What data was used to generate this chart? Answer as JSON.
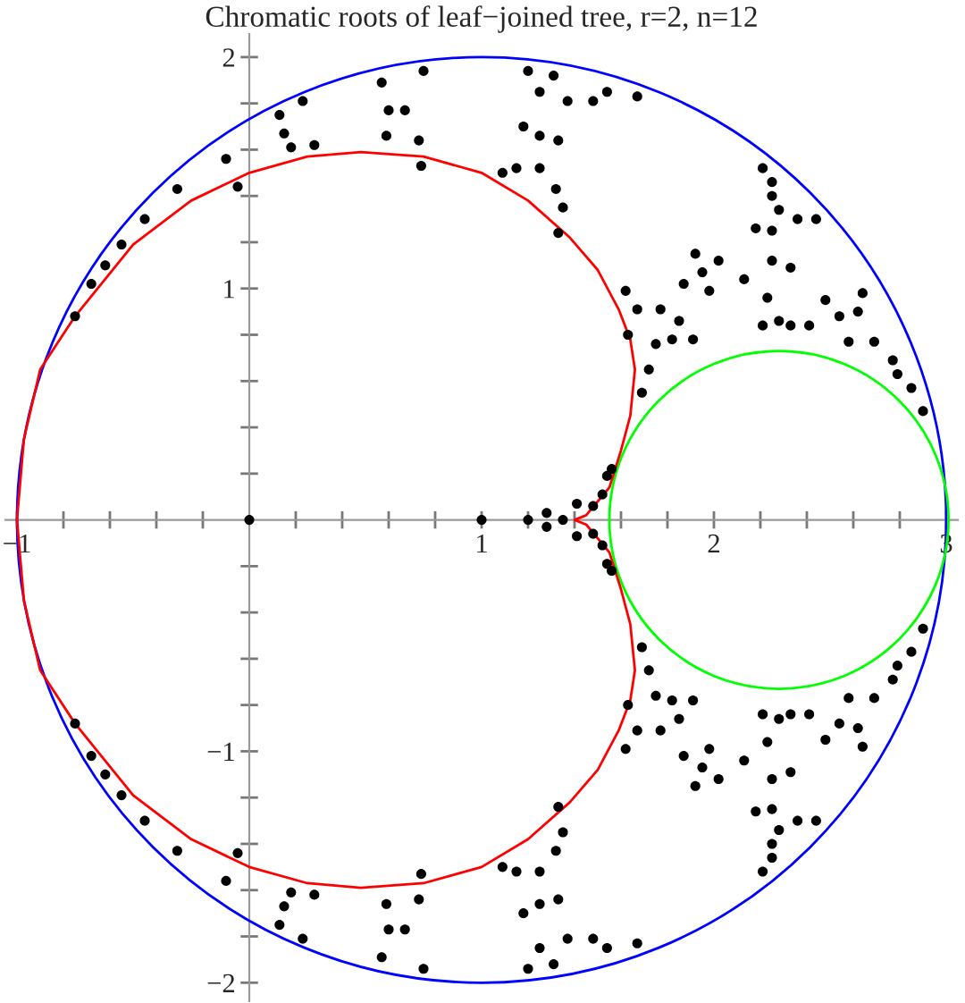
{
  "chart_data": {
    "type": "scatter",
    "title": "Chromatic roots of leaf−joined tree, r=2, n=12",
    "xlim": [
      -1.05,
      3.05
    ],
    "ylim": [
      -2.08,
      2.1
    ],
    "xticks": [
      {
        "value": -1,
        "label": "−1"
      },
      {
        "value": -0.8,
        "label": null
      },
      {
        "value": -0.6,
        "label": null
      },
      {
        "value": -0.4,
        "label": null
      },
      {
        "value": -0.2,
        "label": null
      },
      {
        "value": 0.2,
        "label": null
      },
      {
        "value": 0.4,
        "label": null
      },
      {
        "value": 0.6,
        "label": null
      },
      {
        "value": 0.8,
        "label": null
      },
      1,
      {
        "value": 1.2,
        "label": null
      },
      {
        "value": 1.4,
        "label": null
      },
      {
        "value": 1.6,
        "label": null
      },
      {
        "value": 1.8,
        "label": null
      },
      2,
      {
        "value": 2.2,
        "label": null
      },
      {
        "value": 2.4,
        "label": null
      },
      {
        "value": 2.6,
        "label": null
      },
      {
        "value": 2.8,
        "label": null
      },
      3
    ],
    "yticks": [
      {
        "value": -2,
        "label": "−2"
      },
      {
        "value": -1.8,
        "label": null
      },
      {
        "value": -1.6,
        "label": null
      },
      {
        "value": -1.4,
        "label": null
      },
      {
        "value": -1.2,
        "label": null
      },
      {
        "value": -1,
        "label": "−1"
      },
      {
        "value": -0.8,
        "label": null
      },
      {
        "value": -0.6,
        "label": null
      },
      {
        "value": -0.4,
        "label": null
      },
      {
        "value": -0.2,
        "label": null
      },
      {
        "value": 0.2,
        "label": null
      },
      {
        "value": 0.4,
        "label": null
      },
      {
        "value": 0.6,
        "label": null
      },
      {
        "value": 0.8,
        "label": null
      },
      1,
      {
        "value": 1.2,
        "label": null
      },
      {
        "value": 1.4,
        "label": null
      },
      {
        "value": 1.6,
        "label": null
      },
      {
        "value": 1.8,
        "label": null
      },
      2
    ],
    "series": [
      {
        "color": "#000000",
        "marker": "circle",
        "x": [
          -0.75,
          -0.68,
          -0.62,
          -0.55,
          -0.45,
          -0.31,
          -0.1,
          -0.05,
          0.13,
          0.15,
          0.23,
          0.28,
          0.18,
          0.57,
          0.6,
          0.67,
          0.59,
          0.75,
          0.73,
          0.74,
          1.2,
          1.25,
          1.31,
          1.18,
          1.25,
          1.33,
          1.37,
          1.15,
          1.25,
          1.32,
          1.35,
          1.33,
          1.48,
          1.54,
          1.67,
          1.09,
          1.95,
          2.02,
          1.92,
          1.98,
          1.87,
          2.13,
          1.77,
          1.85,
          1.62,
          1.67,
          1.75,
          1.82,
          1.72,
          1.69,
          1.63,
          1.91,
          2.21,
          2.25,
          2.25,
          2.18,
          2.25,
          2.28,
          2.36,
          2.44,
          2.25,
          2.33,
          2.23,
          2.28,
          2.33,
          2.21,
          2.48,
          2.41,
          2.54,
          2.64,
          2.62,
          2.58,
          2.69,
          2.77,
          2.79,
          2.85,
          2.9,
          1.28,
          1.41,
          1.52,
          1.54,
          1.56,
          1.48,
          -0.75,
          -0.68,
          -0.62,
          -0.55,
          -0.45,
          -0.31,
          -0.1,
          -0.05,
          0.13,
          0.15,
          0.23,
          0.28,
          0.18,
          0.57,
          0.6,
          0.67,
          0.59,
          0.75,
          0.73,
          0.74,
          1.2,
          1.25,
          1.31,
          1.18,
          1.25,
          1.33,
          1.37,
          1.15,
          1.25,
          1.32,
          1.35,
          1.33,
          1.48,
          1.54,
          1.67,
          1.09,
          1.95,
          2.02,
          1.92,
          1.98,
          1.87,
          2.13,
          1.77,
          1.85,
          1.62,
          1.67,
          1.75,
          1.82,
          1.72,
          1.69,
          1.63,
          1.91,
          2.21,
          2.25,
          2.25,
          2.18,
          2.25,
          2.28,
          2.36,
          2.44,
          2.25,
          2.33,
          2.23,
          2.28,
          2.33,
          2.21,
          2.48,
          2.41,
          2.54,
          2.64,
          2.62,
          2.58,
          2.69,
          2.77,
          2.79,
          2.85,
          2.9,
          1.28,
          1.41,
          1.52,
          1.54,
          1.56,
          1.48,
          0,
          1,
          1.2,
          1.35
        ],
        "values": [
          0.88,
          1.02,
          1.1,
          1.19,
          1.3,
          1.43,
          1.56,
          1.44,
          1.75,
          1.67,
          1.81,
          1.62,
          1.61,
          1.89,
          1.77,
          1.77,
          1.66,
          1.94,
          1.64,
          1.53,
          1.94,
          1.85,
          1.92,
          1.7,
          1.66,
          1.64,
          1.81,
          1.52,
          1.52,
          1.43,
          1.35,
          1.24,
          1.81,
          1.85,
          1.83,
          1.5,
          1.07,
          1.12,
          1.15,
          0.99,
          1.02,
          1.04,
          0.91,
          0.86,
          0.99,
          0.91,
          0.76,
          0.78,
          0.65,
          0.55,
          0.8,
          0.78,
          1.52,
          1.46,
          1.4,
          1.26,
          1.25,
          1.34,
          1.3,
          1.3,
          1.12,
          1.09,
          0.96,
          0.86,
          0.84,
          0.84,
          0.95,
          0.84,
          0.88,
          0.98,
          0.9,
          0.77,
          0.77,
          0.69,
          0.63,
          0.57,
          0.47,
          0.03,
          0.07,
          0.11,
          0.19,
          0.22,
          0.06,
          -0.88,
          -1.02,
          -1.1,
          -1.19,
          -1.3,
          -1.43,
          -1.56,
          -1.44,
          -1.75,
          -1.67,
          -1.81,
          -1.62,
          -1.61,
          -1.89,
          -1.77,
          -1.77,
          -1.66,
          -1.94,
          -1.64,
          -1.53,
          -1.94,
          -1.85,
          -1.92,
          -1.7,
          -1.66,
          -1.64,
          -1.81,
          -1.52,
          -1.52,
          -1.43,
          -1.35,
          -1.24,
          -1.81,
          -1.85,
          -1.83,
          -1.5,
          -1.07,
          -1.12,
          -1.15,
          -0.99,
          -1.02,
          -1.04,
          -0.91,
          -0.86,
          -0.99,
          -0.91,
          -0.76,
          -0.78,
          -0.65,
          -0.55,
          -0.8,
          -0.78,
          -1.52,
          -1.46,
          -1.4,
          -1.26,
          -1.25,
          -1.34,
          -1.3,
          -1.3,
          -1.12,
          -1.09,
          -0.96,
          -0.86,
          -0.84,
          -0.84,
          -0.95,
          -0.84,
          -0.88,
          -0.98,
          -0.9,
          -0.77,
          -0.77,
          -0.69,
          -0.63,
          -0.57,
          -0.47,
          -0.03,
          -0.07,
          -0.11,
          -0.19,
          -0.22,
          -0.06,
          0,
          0,
          0,
          0
        ]
      }
    ]
  }
}
